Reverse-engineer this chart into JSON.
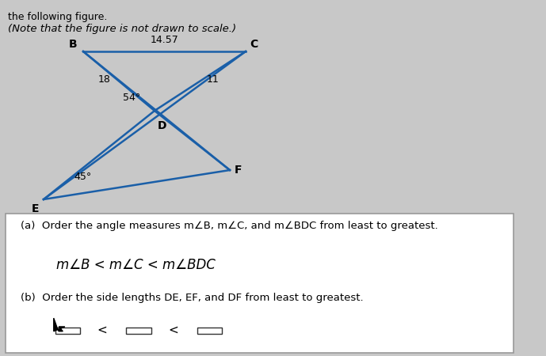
{
  "bg_color": "#c8c8c8",
  "box_color": "#ffffff",
  "line_color": "#1a5fa8",
  "text_color": "#000000",
  "header_text1": "the following figure.",
  "header_text2": "(Note that the figure is not drawn to scale.)",
  "label_14_57": "14.57",
  "label_18": "18",
  "label_11": "11",
  "label_54": "54°",
  "label_45": "45°",
  "label_B": "B",
  "label_C": "C",
  "label_D": "D",
  "label_E": "E",
  "label_F": "F",
  "part_a_q": "(a)  Order the angle measures m∠B, m∠C, and m∠BDC from least to greatest.",
  "part_a_ans": "m∠B < m∠C < m∠BDC",
  "part_b_q": "(b)  Order the side lengths DE, EF, and DF from least to greatest.",
  "figsize": [
    6.89,
    4.5
  ],
  "dpi": 100
}
